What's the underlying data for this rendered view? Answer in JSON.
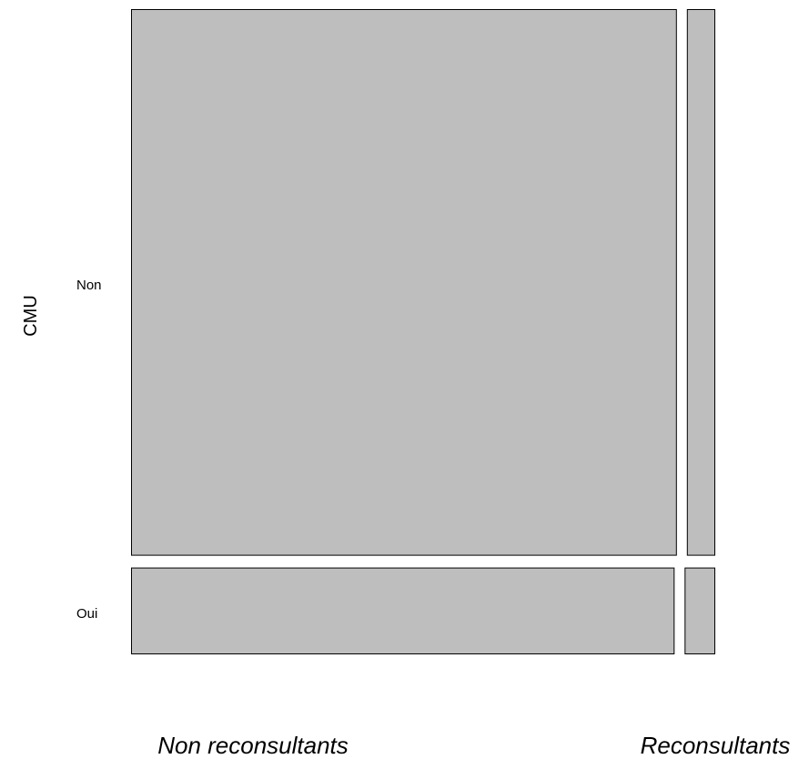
{
  "chart_data": {
    "type": "mosaic",
    "ylabel": "CMU",
    "columns": [
      "Non reconsultants",
      "Reconsultants"
    ],
    "rows": [
      "Non",
      "Oui"
    ],
    "proportions": {
      "Non": {
        "Non reconsultants": 0.952,
        "Reconsultants": 0.048
      },
      "Oui": {
        "Non reconsultants": 0.948,
        "Reconsultants": 0.052
      }
    },
    "row_shares": {
      "Non": 0.864,
      "Oui": 0.136
    },
    "colors": {
      "fill": "#bebebe",
      "stroke": "#000000"
    }
  }
}
